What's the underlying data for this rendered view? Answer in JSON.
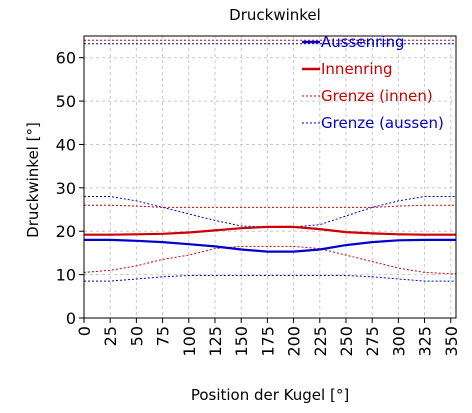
{
  "chart_data": {
    "type": "line",
    "title": "Druckwinkel",
    "xlabel": "Position der Kugel [°]",
    "ylabel": "Druckwinkel [°]",
    "xlim": [
      0,
      355
    ],
    "ylim": [
      0,
      65
    ],
    "xticks": [
      0,
      25,
      50,
      75,
      100,
      125,
      150,
      175,
      200,
      225,
      250,
      275,
      300,
      325,
      350
    ],
    "yticks": [
      0,
      10,
      20,
      30,
      40,
      50,
      60
    ],
    "grid": true,
    "legend_position": "top-right",
    "x": [
      0,
      25,
      50,
      75,
      100,
      125,
      150,
      175,
      200,
      225,
      250,
      275,
      300,
      325,
      350,
      355
    ],
    "series": [
      {
        "name": "Aussenring",
        "color": "#0000cc",
        "style": "solid",
        "values": [
          18.0,
          18.0,
          17.8,
          17.5,
          17.0,
          16.5,
          15.8,
          15.3,
          15.3,
          15.8,
          16.8,
          17.5,
          17.9,
          18.0,
          18.0,
          18.0
        ]
      },
      {
        "name": "Innenring",
        "color": "#cc0000",
        "style": "solid",
        "values": [
          19.2,
          19.2,
          19.3,
          19.4,
          19.7,
          20.2,
          20.7,
          21.0,
          21.0,
          20.5,
          19.8,
          19.5,
          19.3,
          19.2,
          19.2,
          19.2
        ]
      },
      {
        "name": "Grenze (innen)",
        "color": "#cc0000",
        "style": "dotted",
        "values_upper": [
          64.0,
          64.0,
          64.0,
          64.0,
          64.0,
          64.0,
          64.0,
          64.0,
          64.0,
          64.0,
          64.0,
          64.0,
          64.0,
          64.0,
          64.0,
          64.0
        ],
        "values_band_upper": [
          26.0,
          26.0,
          25.8,
          25.5,
          25.5,
          25.5,
          25.5,
          25.5,
          25.5,
          25.5,
          25.5,
          25.5,
          25.8,
          26.0,
          26.0,
          26.0
        ],
        "values_band_lower": [
          10.5,
          11.0,
          12.0,
          13.5,
          14.5,
          16.0,
          16.5,
          16.5,
          16.5,
          16.0,
          14.5,
          13.0,
          11.5,
          10.5,
          10.2,
          10.2
        ]
      },
      {
        "name": "Grenze (aussen)",
        "color": "#0000cc",
        "style": "dotted",
        "values_upper": [
          63.2,
          63.2,
          63.2,
          63.2,
          63.2,
          63.2,
          63.2,
          63.2,
          63.2,
          63.2,
          63.2,
          63.2,
          63.2,
          63.2,
          63.2,
          63.2
        ],
        "values_band_upper": [
          28.0,
          28.0,
          27.0,
          25.5,
          24.0,
          22.5,
          21.2,
          21.0,
          21.0,
          21.5,
          23.5,
          25.5,
          27.0,
          28.0,
          28.0,
          28.0
        ],
        "values_band_lower": [
          8.5,
          8.5,
          9.0,
          9.5,
          9.8,
          9.8,
          9.8,
          9.8,
          9.8,
          9.8,
          9.8,
          9.5,
          9.0,
          8.5,
          8.5,
          8.5
        ]
      }
    ]
  }
}
